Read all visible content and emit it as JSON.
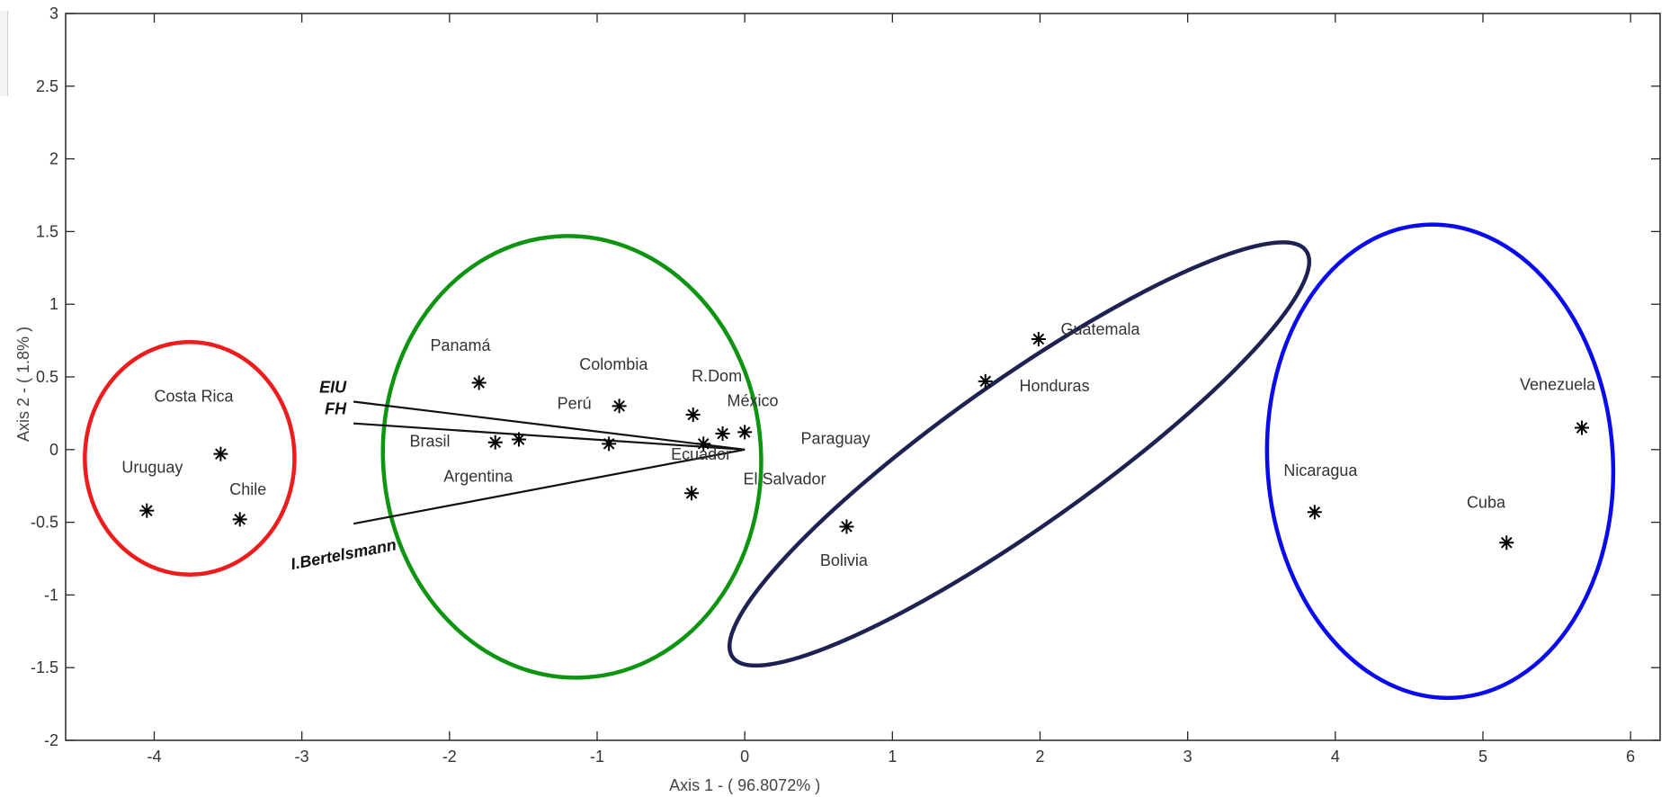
{
  "chart_data": {
    "type": "scatter",
    "title": "",
    "xlabel": "Axis 1 - ( 96.8072% )",
    "ylabel": "Axis 2 - ( 1.8% )",
    "xlim": [
      -4.6,
      6.2
    ],
    "ylim": [
      -2,
      3
    ],
    "xticks": [
      -4,
      -3,
      -2,
      -1,
      0,
      1,
      2,
      3,
      4,
      5,
      6
    ],
    "yticks": [
      -2,
      -1.5,
      -1,
      -0.5,
      0,
      0.5,
      1,
      1.5,
      2,
      2.5,
      3
    ],
    "xtick_labels": [
      "-4",
      "-3",
      "-2",
      "-1",
      "0",
      "1",
      "2",
      "3",
      "4",
      "5",
      "6"
    ],
    "ytick_labels": [
      "-2",
      "-1.5",
      "-1",
      "-0.5",
      "0",
      "0.5",
      "1",
      "1.5",
      "2",
      "2.5",
      "3"
    ],
    "grid": false,
    "points": [
      {
        "x": -3.55,
        "y": -0.03
      },
      {
        "x": -4.05,
        "y": -0.42
      },
      {
        "x": -3.42,
        "y": -0.48
      },
      {
        "x": -1.8,
        "y": 0.46
      },
      {
        "x": -1.69,
        "y": 0.05
      },
      {
        "x": -1.53,
        "y": 0.07
      },
      {
        "x": -0.92,
        "y": 0.04
      },
      {
        "x": -0.85,
        "y": 0.3
      },
      {
        "x": -0.35,
        "y": 0.24
      },
      {
        "x": -0.28,
        "y": 0.04
      },
      {
        "x": -0.15,
        "y": 0.11
      },
      {
        "x": 0.0,
        "y": 0.12
      },
      {
        "x": -0.36,
        "y": -0.3
      },
      {
        "x": 0.69,
        "y": -0.53
      },
      {
        "x": 1.63,
        "y": 0.47
      },
      {
        "x": 1.99,
        "y": 0.76
      },
      {
        "x": 3.86,
        "y": -0.43
      },
      {
        "x": 5.16,
        "y": -0.64
      },
      {
        "x": 5.67,
        "y": 0.15
      }
    ],
    "labels": [
      {
        "text": "Costa Rica",
        "x": -4.0,
        "y": 0.33
      },
      {
        "text": "Uruguay",
        "x": -4.22,
        "y": -0.16
      },
      {
        "text": "Chile",
        "x": -3.49,
        "y": -0.31
      },
      {
        "text": "Panamá",
        "x": -2.13,
        "y": 0.68
      },
      {
        "text": "Colombia",
        "x": -1.12,
        "y": 0.55
      },
      {
        "text": "R.Dom",
        "x": -0.36,
        "y": 0.47
      },
      {
        "text": "Perú",
        "x": -1.27,
        "y": 0.28
      },
      {
        "text": "México",
        "x": -0.12,
        "y": 0.3
      },
      {
        "text": "Brasil",
        "x": -2.27,
        "y": 0.02
      },
      {
        "text": "Paraguay",
        "x": 0.38,
        "y": 0.04
      },
      {
        "text": "Ecuador",
        "x": -0.5,
        "y": -0.07
      },
      {
        "text": "Argentina",
        "x": -2.04,
        "y": -0.22
      },
      {
        "text": "El Salvador",
        "x": -0.01,
        "y": -0.24
      },
      {
        "text": "Bolivia",
        "x": 0.51,
        "y": -0.8
      },
      {
        "text": "Guatemala",
        "x": 2.14,
        "y": 0.79
      },
      {
        "text": "Honduras",
        "x": 1.86,
        "y": 0.4
      },
      {
        "text": "Nicaragua",
        "x": 3.65,
        "y": -0.18
      },
      {
        "text": "Cuba",
        "x": 4.89,
        "y": -0.4
      },
      {
        "text": "Venezuela",
        "x": 5.25,
        "y": 0.41
      }
    ],
    "vectors": [
      {
        "name": "EIU",
        "x": -2.65,
        "y": 0.33
      },
      {
        "name": "FH",
        "x": -2.65,
        "y": 0.18
      },
      {
        "name": "I.Bertelsmann",
        "x": -2.65,
        "y": -0.51
      }
    ],
    "clusters": [
      {
        "color": "#ee1c1c",
        "center": [
          -3.76,
          -0.06
        ],
        "rx": 0.71,
        "ry": 0.8,
        "rotation_deg": 0
      },
      {
        "color": "#0d9410",
        "center": [
          -1.17,
          -0.05
        ],
        "rx": 1.28,
        "ry": 1.52,
        "rotation_deg": 4
      },
      {
        "color": "#1e2253",
        "center": [
          1.86,
          -0.03
        ],
        "rx": 2.38,
        "ry": 0.5,
        "rotation_deg": 35.3
      },
      {
        "color": "#0a0af0",
        "center": [
          4.71,
          -0.08
        ],
        "rx": 1.17,
        "ry": 1.63,
        "rotation_deg": 4
      }
    ]
  }
}
